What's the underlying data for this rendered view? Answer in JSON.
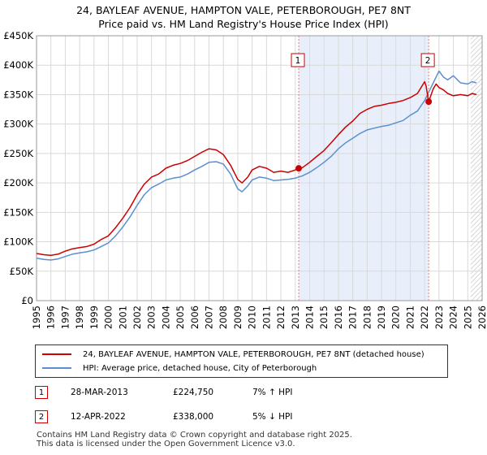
{
  "title_line1": "24, BAYLEAF AVENUE, HAMPTON VALE, PETERBOROUGH, PE7 8NT",
  "title_line2": "Price paid vs. HM Land Registry's House Price Index (HPI)",
  "colors": {
    "property": "#cc0000",
    "hpi": "#5b8fd0",
    "shade": "#e9effa",
    "vline": "#e08080",
    "grid": "#d9d9d9"
  },
  "chart_data": {
    "type": "line",
    "title": "Price paid vs. HM Land Registry's House Price Index (HPI)",
    "xlabel": "",
    "ylabel": "",
    "xlim": [
      1995,
      2026
    ],
    "ylim": [
      0,
      450000
    ],
    "x_ticks": [
      "1995",
      "1996",
      "1997",
      "1998",
      "1999",
      "2000",
      "2001",
      "2002",
      "2003",
      "2004",
      "2005",
      "2006",
      "2007",
      "2008",
      "2009",
      "2010",
      "2011",
      "2012",
      "2013",
      "2014",
      "2015",
      "2016",
      "2017",
      "2018",
      "2019",
      "2020",
      "2021",
      "2022",
      "2023",
      "2024",
      "2025",
      "2026"
    ],
    "y_ticks": [
      {
        "value": 0,
        "label": "£0"
      },
      {
        "value": 50000,
        "label": "£50K"
      },
      {
        "value": 100000,
        "label": "£100K"
      },
      {
        "value": 150000,
        "label": "£150K"
      },
      {
        "value": 200000,
        "label": "£200K"
      },
      {
        "value": 250000,
        "label": "£250K"
      },
      {
        "value": 300000,
        "label": "£300K"
      },
      {
        "value": 350000,
        "label": "£350K"
      },
      {
        "value": 400000,
        "label": "£400K"
      },
      {
        "value": 450000,
        "label": "£450K"
      }
    ],
    "series": [
      {
        "name": "24, BAYLEAF AVENUE, HAMPTON VALE, PETERBOROUGH, PE7 8NT (detached house)",
        "x": [
          1995,
          1995.5,
          1996,
          1996.5,
          1997,
          1997.5,
          1998,
          1998.5,
          1999,
          1999.5,
          2000,
          2000.5,
          2001,
          2001.5,
          2002,
          2002.5,
          2003,
          2003.5,
          2004,
          2004.5,
          2005,
          2005.5,
          2006,
          2006.5,
          2007,
          2007.5,
          2008,
          2008.5,
          2009,
          2009.3,
          2009.7,
          2010,
          2010.5,
          2011,
          2011.5,
          2012,
          2012.5,
          2013,
          2013.24,
          2013.5,
          2014,
          2014.5,
          2015,
          2015.5,
          2016,
          2016.5,
          2017,
          2017.5,
          2018,
          2018.5,
          2019,
          2019.5,
          2020,
          2020.5,
          2021,
          2021.5,
          2022,
          2022.1,
          2022.28,
          2022.4,
          2022.6,
          2022.8,
          2023,
          2023.3,
          2023.6,
          2024,
          2024.5,
          2025,
          2025.3,
          2025.6
        ],
        "values": [
          80000,
          78000,
          77000,
          79000,
          84000,
          88000,
          90000,
          92000,
          96000,
          104000,
          110000,
          124000,
          140000,
          158000,
          180000,
          198000,
          210000,
          215000,
          225000,
          230000,
          233000,
          238000,
          245000,
          252000,
          258000,
          256000,
          248000,
          230000,
          206000,
          200000,
          210000,
          222000,
          228000,
          225000,
          218000,
          220000,
          218000,
          222000,
          224750,
          226000,
          235000,
          245000,
          255000,
          268000,
          282000,
          295000,
          305000,
          318000,
          325000,
          330000,
          332000,
          335000,
          337000,
          340000,
          345000,
          352000,
          372000,
          365000,
          338000,
          346000,
          360000,
          368000,
          362000,
          358000,
          352000,
          348000,
          350000,
          348000,
          352000,
          350000
        ]
      },
      {
        "name": "HPI: Average price, detached house, City of Peterborough",
        "x": [
          1995,
          1995.5,
          1996,
          1996.5,
          1997,
          1997.5,
          1998,
          1998.5,
          1999,
          1999.5,
          2000,
          2000.5,
          2001,
          2001.5,
          2002,
          2002.5,
          2003,
          2003.5,
          2004,
          2004.5,
          2005,
          2005.5,
          2006,
          2006.5,
          2007,
          2007.5,
          2008,
          2008.5,
          2009,
          2009.3,
          2009.7,
          2010,
          2010.5,
          2011,
          2011.5,
          2012,
          2012.5,
          2013,
          2013.5,
          2014,
          2014.5,
          2015,
          2015.5,
          2016,
          2016.5,
          2017,
          2017.5,
          2018,
          2018.5,
          2019,
          2019.5,
          2020,
          2020.5,
          2021,
          2021.5,
          2022,
          2022.3,
          2022.6,
          2022.9,
          2023,
          2023.3,
          2023.6,
          2024,
          2024.5,
          2025,
          2025.3,
          2025.6
        ],
        "values": [
          72000,
          70000,
          69000,
          71000,
          75000,
          79000,
          81000,
          83000,
          86000,
          92000,
          98000,
          110000,
          125000,
          142000,
          162000,
          180000,
          192000,
          198000,
          205000,
          208000,
          210000,
          215000,
          222000,
          228000,
          235000,
          236000,
          232000,
          215000,
          190000,
          185000,
          195000,
          205000,
          210000,
          208000,
          204000,
          205000,
          206000,
          208000,
          212000,
          218000,
          226000,
          235000,
          245000,
          258000,
          268000,
          276000,
          284000,
          290000,
          293000,
          296000,
          298000,
          302000,
          306000,
          315000,
          322000,
          340000,
          355000,
          370000,
          385000,
          390000,
          380000,
          375000,
          382000,
          370000,
          368000,
          372000,
          370000
        ]
      }
    ],
    "annotations": [
      {
        "label": "1",
        "x": 2013.24,
        "value": 224750
      },
      {
        "label": "2",
        "x": 2022.28,
        "value": 338000
      }
    ],
    "shaded_span": [
      2013.24,
      2022.28
    ],
    "hatch_from": 2025.2
  },
  "legend": {
    "property_label": "24, BAYLEAF AVENUE, HAMPTON VALE, PETERBOROUGH, PE7 8NT (detached house)",
    "hpi_label": "HPI: Average price, detached house, City of Peterborough"
  },
  "transactions": [
    {
      "num": "1",
      "date": "28-MAR-2013",
      "price": "£224,750",
      "hpi": "7% ↑ HPI"
    },
    {
      "num": "2",
      "date": "12-APR-2022",
      "price": "£338,000",
      "hpi": "5% ↓ HPI"
    }
  ],
  "footer": {
    "line1": "Contains HM Land Registry data © Crown copyright and database right 2025.",
    "line2": "This data is licensed under the Open Government Licence v3.0."
  }
}
